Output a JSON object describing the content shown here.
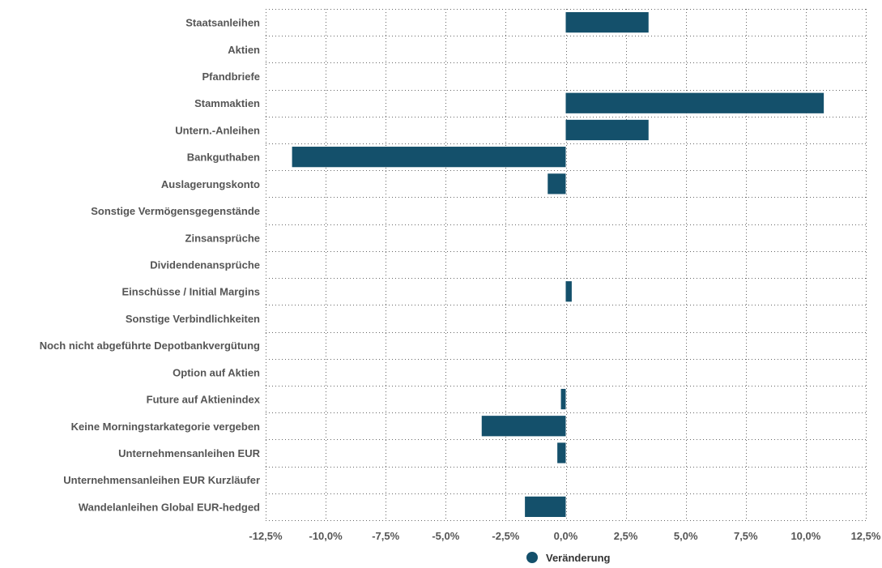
{
  "chart_data": {
    "type": "bar",
    "orientation": "horizontal",
    "categories": [
      "Staatsanleihen",
      "Aktien",
      "Pfandbriefe",
      "Stammaktien",
      "Untern.-Anleihen",
      "Bankguthaben",
      "Auslagerungskonto",
      "Sonstige Vermögensgegenstände",
      "Zinsansprüche",
      "Dividendenansprüche",
      "Einschüsse / Initial Margins",
      "Sonstige Verbindlichkeiten",
      "Noch nicht abgeführte Depotbankvergütung",
      "Option auf Aktien",
      "Future auf Aktienindex",
      "Keine Morningstarkategorie vergeben",
      "Unternehmensanleihen EUR",
      "Unternehmensanleihen EUR Kurzläufer",
      "Wandelanleihen Global EUR-hedged"
    ],
    "series": [
      {
        "name": "Veränderung",
        "color": "#14506b",
        "values": [
          3.45,
          0,
          0,
          10.75,
          3.45,
          -11.4,
          -0.75,
          0,
          0,
          0,
          0.25,
          0,
          0,
          0,
          -0.2,
          -3.5,
          -0.35,
          0,
          -1.7
        ]
      }
    ],
    "xlim": [
      -12.5,
      12.5
    ],
    "xticks": [
      -12.5,
      -10,
      -7.5,
      -5,
      -2.5,
      0,
      2.5,
      5,
      7.5,
      10,
      12.5
    ],
    "xtick_labels": [
      "-12,5%",
      "-10,0%",
      "-7,5%",
      "-5,0%",
      "-2,5%",
      "0,0%",
      "2,5%",
      "5,0%",
      "7,5%",
      "10,0%",
      "12,5%"
    ],
    "grid": true,
    "legend_position": "bottom"
  }
}
